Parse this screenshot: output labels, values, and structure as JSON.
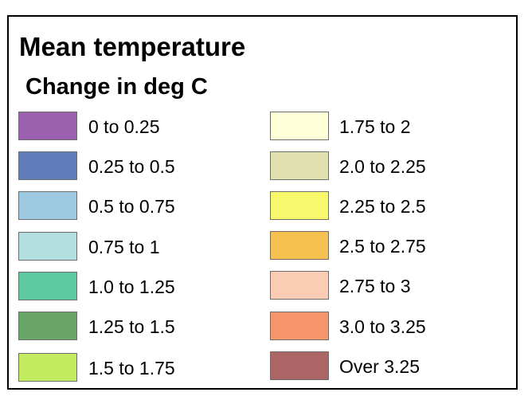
{
  "legend": {
    "title": "Mean temperature",
    "subtitle": "Change in deg C",
    "left_items": [
      {
        "label": "0 to 0.25",
        "color": "#9a60ae"
      },
      {
        "label": "0.25 to 0.5",
        "color": "#617cb9"
      },
      {
        "label": "0.5 to 0.75",
        "color": "#9ecae1"
      },
      {
        "label": "0.75 to 1",
        "color": "#b3dfe0"
      },
      {
        "label": "1.0 to 1.25",
        "color": "#5ec8a0"
      },
      {
        "label": "1.25 to 1.5",
        "color": "#6aa56a"
      },
      {
        "label": "1.5 to 1.75",
        "color": "#c3eb60"
      }
    ],
    "right_items": [
      {
        "label": "1.75 to 2",
        "color": "#ffffd9"
      },
      {
        "label": "2.0 to 2.25",
        "color": "#e0dfb0"
      },
      {
        "label": "2.25 to 2.5",
        "color": "#f7f86b"
      },
      {
        "label": "2.5 to 2.75",
        "color": "#f5c150"
      },
      {
        "label": "2.75 to 3",
        "color": "#f9ccb3"
      },
      {
        "label": "3.0 to 3.25",
        "color": "#f6956a"
      },
      {
        "label": "Over 3.25",
        "color": "#ab6565"
      }
    ]
  }
}
